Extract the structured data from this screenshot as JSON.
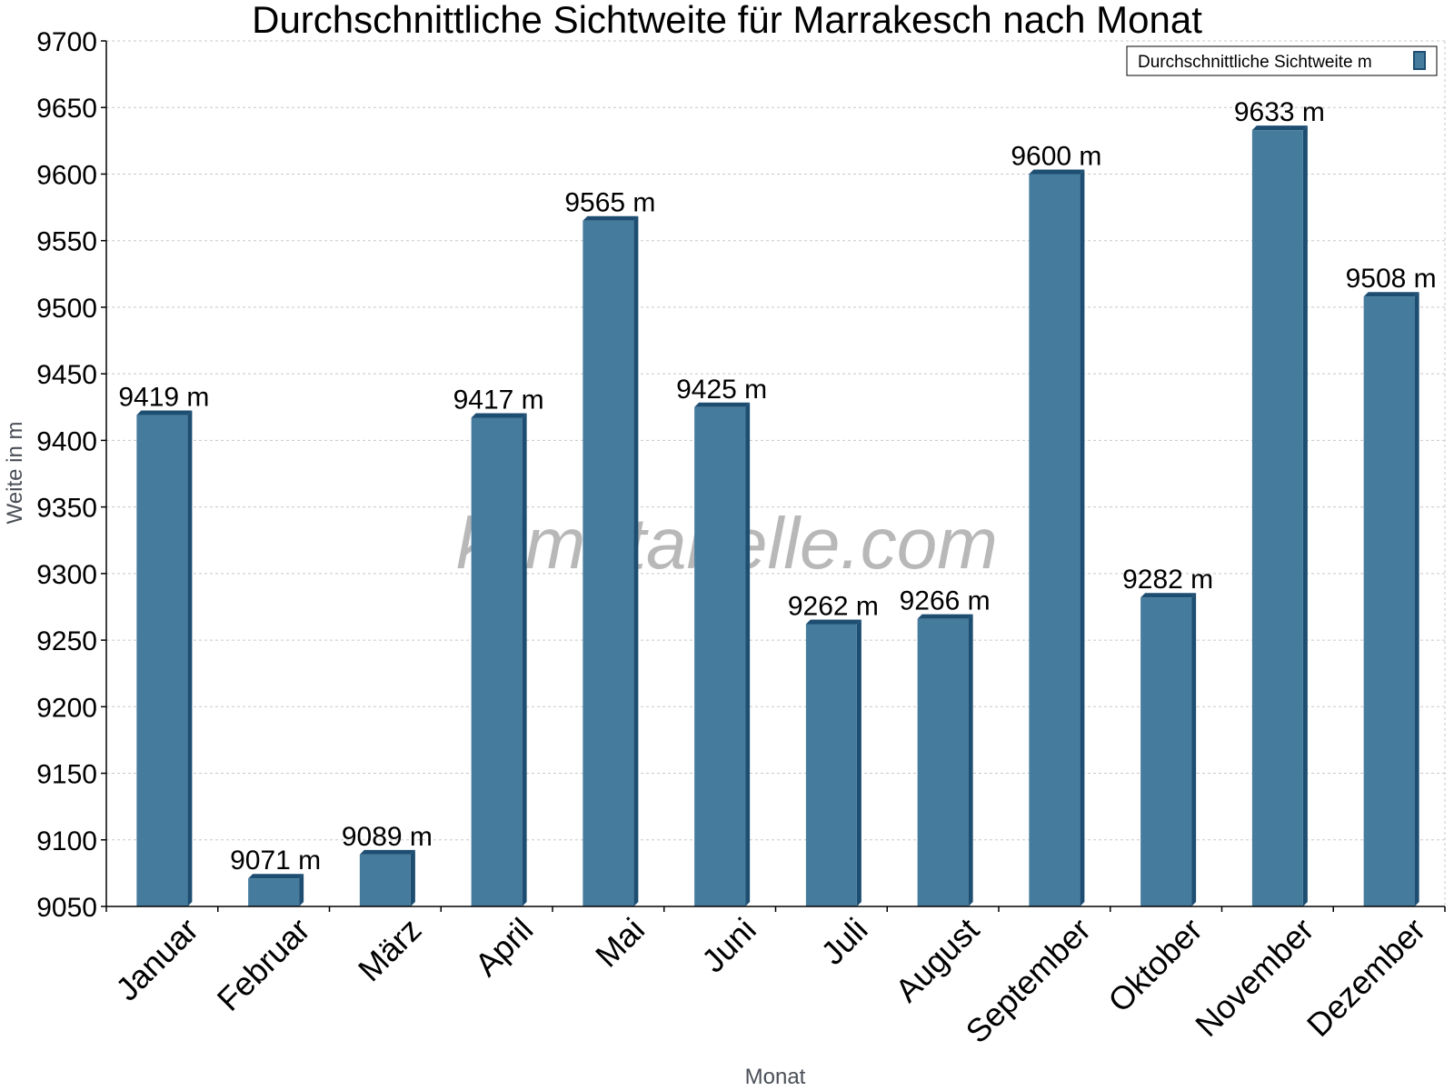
{
  "chart_data": {
    "type": "bar",
    "title": "Durchschnittliche Sichtweite für Marrakesch nach Monat",
    "xlabel": "Monat",
    "ylabel": "Weite in m",
    "categories": [
      "Januar",
      "Februar",
      "März",
      "April",
      "Mai",
      "Juni",
      "Juli",
      "August",
      "September",
      "Oktober",
      "November",
      "Dezember"
    ],
    "series": [
      {
        "name": "Durchschnittliche Sichtweite m",
        "values": [
          9419,
          9071,
          9089,
          9417,
          9565,
          9425,
          9262,
          9266,
          9600,
          9282,
          9633,
          9508
        ],
        "labels": [
          "9419 m",
          "9071 m",
          "9089 m",
          "9417 m",
          "9565 m",
          "9425 m",
          "9262 m",
          "9266 m",
          "9600 m",
          "9282 m",
          "9633 m",
          "9508 m"
        ]
      }
    ],
    "ylim": [
      9050,
      9700
    ],
    "yticks": [
      9050,
      9100,
      9150,
      9200,
      9250,
      9300,
      9350,
      9400,
      9450,
      9500,
      9550,
      9600,
      9650,
      9700
    ],
    "grid": true,
    "legend_position": "top-right",
    "colors": {
      "bar": "#457b9d",
      "bar_side": "#1d4e72",
      "bar_top": "#1d4e72"
    }
  },
  "watermark": "klimatabelle.com"
}
